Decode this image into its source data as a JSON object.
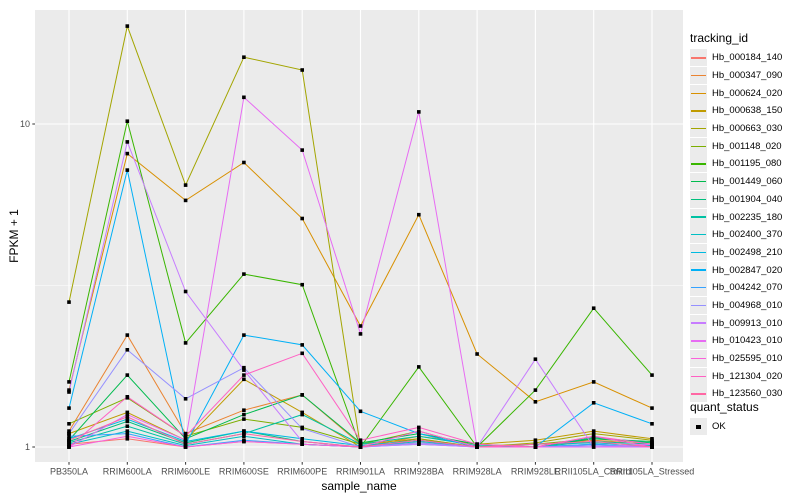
{
  "chart_data": {
    "type": "line",
    "title": "",
    "xlabel": "sample_name",
    "ylabel": "FPKM + 1",
    "x_scale": "discrete",
    "y_scale": "log10",
    "y_breaks": [
      1,
      10
    ],
    "y_minor_breaks": [
      3.162
    ],
    "ylim": [
      1,
      22.5
    ],
    "grid": true,
    "panel_bg": "#EBEBEB",
    "grid_color": "#FFFFFF",
    "axis_text_color": "#4D4D4D",
    "tick_color": "#333333",
    "point_shape": "filled-square",
    "point_color": "#000000",
    "categories": [
      "PB350LA",
      "RRIM600LA",
      "RRIM600LE",
      "RRIM600SE",
      "RRIM600PE",
      "RRIM901LA",
      "RRIM928BA",
      "RRIM928LA",
      "RRIM928LE",
      "RRII105LA_Control",
      "RRII105LA_Stressed"
    ],
    "legend": {
      "position": "right",
      "color_title": "tracking_id",
      "shape_title": "quant_status",
      "shape_entries": [
        {
          "label": "OK"
        }
      ]
    },
    "series": [
      {
        "name": "Hb_000184_140",
        "color": "#F8766D",
        "values": [
          1.02,
          1.06,
          1.0,
          1.04,
          1.02,
          1.0,
          1.03,
          1.0,
          1.0,
          1.02,
          1.0
        ]
      },
      {
        "name": "Hb_000347_090",
        "color": "#EA8331",
        "values": [
          1.12,
          2.22,
          1.1,
          1.3,
          1.45,
          1.02,
          1.06,
          1.0,
          1.02,
          1.05,
          1.02
        ]
      },
      {
        "name": "Hb_000624_020",
        "color": "#D89000",
        "values": [
          1.5,
          8.1,
          5.8,
          7.6,
          5.1,
          2.37,
          5.24,
          1.94,
          1.38,
          1.59,
          1.32
        ]
      },
      {
        "name": "Hb_000638_150",
        "color": "#C09B00",
        "values": [
          1.1,
          1.28,
          1.05,
          1.62,
          1.28,
          1.0,
          1.08,
          1.02,
          1.05,
          1.12,
          1.06
        ]
      },
      {
        "name": "Hb_000663_030",
        "color": "#A3A500",
        "values": [
          2.81,
          20.1,
          6.47,
          16.1,
          14.7,
          1.0,
          1.06,
          1.0,
          1.03,
          1.1,
          1.05
        ]
      },
      {
        "name": "Hb_001148_020",
        "color": "#7CAE00",
        "values": [
          1.18,
          1.42,
          1.08,
          1.22,
          1.15,
          1.02,
          1.12,
          1.0,
          1.02,
          1.06,
          1.03
        ]
      },
      {
        "name": "Hb_001195_080",
        "color": "#39B600",
        "values": [
          1.59,
          10.2,
          2.1,
          3.43,
          3.18,
          1.0,
          1.77,
          1.0,
          1.5,
          2.69,
          1.67
        ]
      },
      {
        "name": "Hb_001449_060",
        "color": "#00BB4E",
        "values": [
          1.05,
          1.67,
          1.06,
          1.26,
          1.45,
          1.03,
          1.1,
          1.02,
          1.0,
          1.06,
          1.04
        ]
      },
      {
        "name": "Hb_001904_040",
        "color": "#00BF7D",
        "values": [
          1.04,
          1.2,
          1.03,
          1.12,
          1.04,
          1.0,
          1.05,
          1.0,
          1.0,
          1.07,
          1.03
        ]
      },
      {
        "name": "Hb_002235_180",
        "color": "#00C1A3",
        "values": [
          1.03,
          1.16,
          1.02,
          1.1,
          1.26,
          1.02,
          1.08,
          1.01,
          1.0,
          1.04,
          1.02
        ]
      },
      {
        "name": "Hb_002400_370",
        "color": "#00BFC4",
        "values": [
          1.02,
          1.12,
          1.01,
          1.08,
          1.02,
          1.0,
          1.04,
          1.0,
          1.02,
          1.03,
          1.01
        ]
      },
      {
        "name": "Hb_002498_210",
        "color": "#00BAE0",
        "values": [
          1.06,
          1.22,
          1.04,
          1.12,
          1.06,
          1.01,
          1.05,
          1.0,
          1.0,
          1.02,
          1.0
        ]
      },
      {
        "name": "Hb_002847_020",
        "color": "#00B0F6",
        "values": [
          1.32,
          7.2,
          1.02,
          2.22,
          2.07,
          1.29,
          1.1,
          1.0,
          1.0,
          1.37,
          1.18
        ]
      },
      {
        "name": "Hb_004242_070",
        "color": "#35A2FF",
        "values": [
          1.08,
          1.1,
          1.0,
          1.05,
          1.02,
          1.0,
          1.02,
          1.0,
          1.0,
          1.02,
          1.0
        ]
      },
      {
        "name": "Hb_004968_010",
        "color": "#9590FF",
        "values": [
          1.1,
          2.0,
          1.41,
          1.76,
          1.14,
          1.0,
          1.03,
          1.0,
          1.0,
          1.01,
          1.0
        ]
      },
      {
        "name": "Hb_009913_010",
        "color": "#C77CFF",
        "values": [
          1.48,
          8.8,
          3.03,
          1.73,
          1.04,
          1.0,
          1.02,
          1.0,
          1.87,
          1.0,
          1.02
        ]
      },
      {
        "name": "Hb_010423_010",
        "color": "#E76BF3",
        "values": [
          1.0,
          1.26,
          1.05,
          12.1,
          8.3,
          2.24,
          10.9,
          1.0,
          1.0,
          1.0,
          1.0
        ]
      },
      {
        "name": "Hb_025595_010",
        "color": "#FA62DB",
        "values": [
          1.0,
          1.08,
          1.0,
          1.04,
          1.02,
          1.0,
          1.12,
          1.0,
          1.0,
          1.08,
          1.0
        ]
      },
      {
        "name": "Hb_121304_020",
        "color": "#FF61C3",
        "values": [
          1.0,
          1.43,
          1.08,
          1.67,
          1.95,
          1.05,
          1.15,
          1.02,
          1.0,
          1.08,
          1.02
        ]
      },
      {
        "name": "Hb_123560_030",
        "color": "#FF67A4",
        "values": [
          1.05,
          1.24,
          1.02,
          1.1,
          1.04,
          1.0,
          1.05,
          1.0,
          1.02,
          1.04,
          1.0
        ]
      }
    ]
  }
}
